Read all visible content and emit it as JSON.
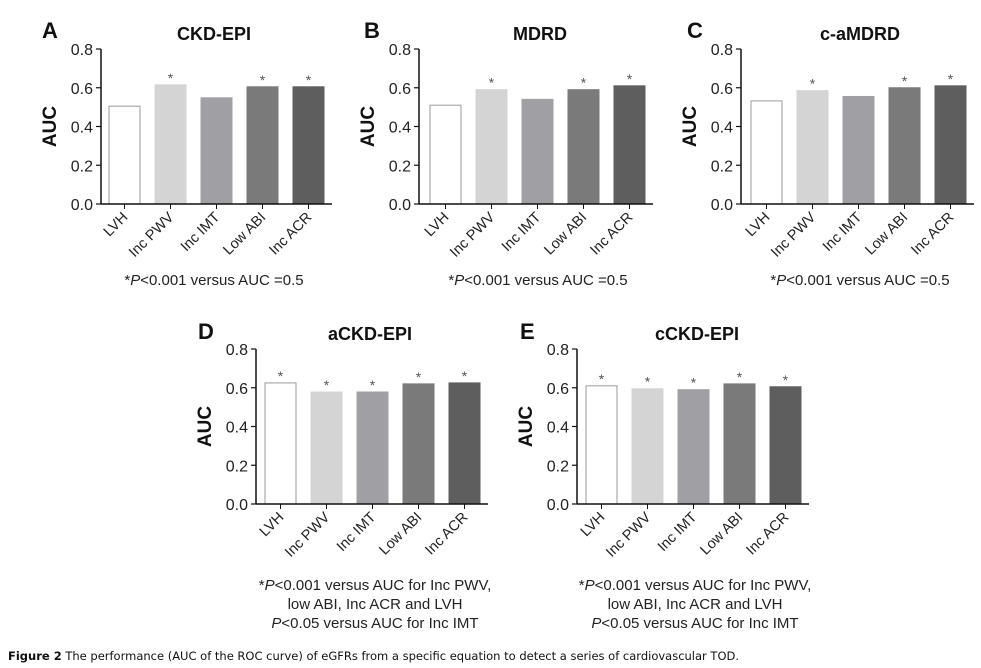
{
  "caption": {
    "label": "Figure 2",
    "text": "The performance (AUC of the ROC curve) of eGFRs from a specific equation to detect a series of cardiovascular TOD."
  },
  "colors": {
    "bars": [
      "#ffffff",
      "#d4d4d4",
      "#a0a0a4",
      "#7a7a7a",
      "#5e5e5e"
    ],
    "bar_outline_first": "#9a9a9a",
    "axis": "#111111",
    "star": "#555555"
  },
  "chart_data": [
    {
      "id": "A",
      "type": "bar",
      "letter": "A",
      "title": "CKD-EPI",
      "xlabel": "",
      "ylabel": "AUC",
      "ylim": [
        0,
        0.8
      ],
      "yticks": [
        "0.0",
        "0.2",
        "0.4",
        "0.6",
        "0.8"
      ],
      "categories": [
        "LVH",
        "Inc PWV",
        "Inc IMT",
        "Low ABI",
        "Inc ACR"
      ],
      "values": [
        0.505,
        0.615,
        0.548,
        0.605,
        0.605
      ],
      "significant": [
        false,
        true,
        false,
        true,
        true
      ],
      "note_lines": [
        {
          "star": "*",
          "p": "P",
          "rest": "<0.001 versus AUC =0.5"
        }
      ]
    },
    {
      "id": "B",
      "type": "bar",
      "letter": "B",
      "title": "MDRD",
      "xlabel": "",
      "ylabel": "AUC",
      "ylim": [
        0,
        0.8
      ],
      "yticks": [
        "0.0",
        "0.2",
        "0.4",
        "0.6",
        "0.8"
      ],
      "categories": [
        "LVH",
        "Inc PWV",
        "Inc IMT",
        "Low ABI",
        "Inc ACR"
      ],
      "values": [
        0.51,
        0.59,
        0.54,
        0.59,
        0.61
      ],
      "significant": [
        false,
        true,
        false,
        true,
        true
      ],
      "note_lines": [
        {
          "star": "*",
          "p": "P",
          "rest": "<0.001 versus AUC =0.5"
        }
      ]
    },
    {
      "id": "C",
      "type": "bar",
      "letter": "C",
      "title": "c-aMDRD",
      "xlabel": "",
      "ylabel": "AUC",
      "ylim": [
        0,
        0.8
      ],
      "yticks": [
        "0.0",
        "0.2",
        "0.4",
        "0.6",
        "0.8"
      ],
      "categories": [
        "LVH",
        "Inc PWV",
        "Inc IMT",
        "Low ABI",
        "Inc ACR"
      ],
      "values": [
        0.532,
        0.585,
        0.555,
        0.6,
        0.61
      ],
      "significant": [
        false,
        true,
        false,
        true,
        true
      ],
      "note_lines": [
        {
          "star": "*",
          "p": "P",
          "rest": "<0.001 versus AUC =0.5"
        }
      ]
    },
    {
      "id": "D",
      "type": "bar",
      "letter": "D",
      "title": "aCKD-EPI",
      "xlabel": "",
      "ylabel": "AUC",
      "ylim": [
        0,
        0.8
      ],
      "yticks": [
        "0.0",
        "0.2",
        "0.4",
        "0.6",
        "0.8"
      ],
      "categories": [
        "LVH",
        "Inc PWV",
        "Inc IMT",
        "Low ABI",
        "Inc ACR"
      ],
      "values": [
        0.625,
        0.578,
        0.578,
        0.62,
        0.625
      ],
      "significant": [
        true,
        true,
        true,
        true,
        true
      ],
      "note_lines": [
        {
          "star": "*",
          "p": "P",
          "rest": "<0.001 versus AUC for Inc PWV,"
        },
        {
          "star": "",
          "p": "",
          "rest": "low ABI, Inc ACR and LVH"
        },
        {
          "star": "",
          "p": "P",
          "rest": "<0.05 versus AUC for Inc IMT"
        }
      ]
    },
    {
      "id": "E",
      "type": "bar",
      "letter": "E",
      "title": "cCKD-EPI",
      "xlabel": "",
      "ylabel": "AUC",
      "ylim": [
        0,
        0.8
      ],
      "yticks": [
        "0.0",
        "0.2",
        "0.4",
        "0.6",
        "0.8"
      ],
      "categories": [
        "LVH",
        "Inc PWV",
        "Inc IMT",
        "Low ABI",
        "Inc ACR"
      ],
      "values": [
        0.61,
        0.595,
        0.59,
        0.62,
        0.605
      ],
      "significant": [
        true,
        true,
        true,
        true,
        true
      ],
      "note_lines": [
        {
          "star": "*",
          "p": "P",
          "rest": "<0.001 versus AUC for Inc PWV,"
        },
        {
          "star": "",
          "p": "",
          "rest": "low ABI, Inc ACR and LVH"
        },
        {
          "star": "",
          "p": "P",
          "rest": "<0.05 versus AUC for Inc IMT"
        }
      ]
    }
  ]
}
